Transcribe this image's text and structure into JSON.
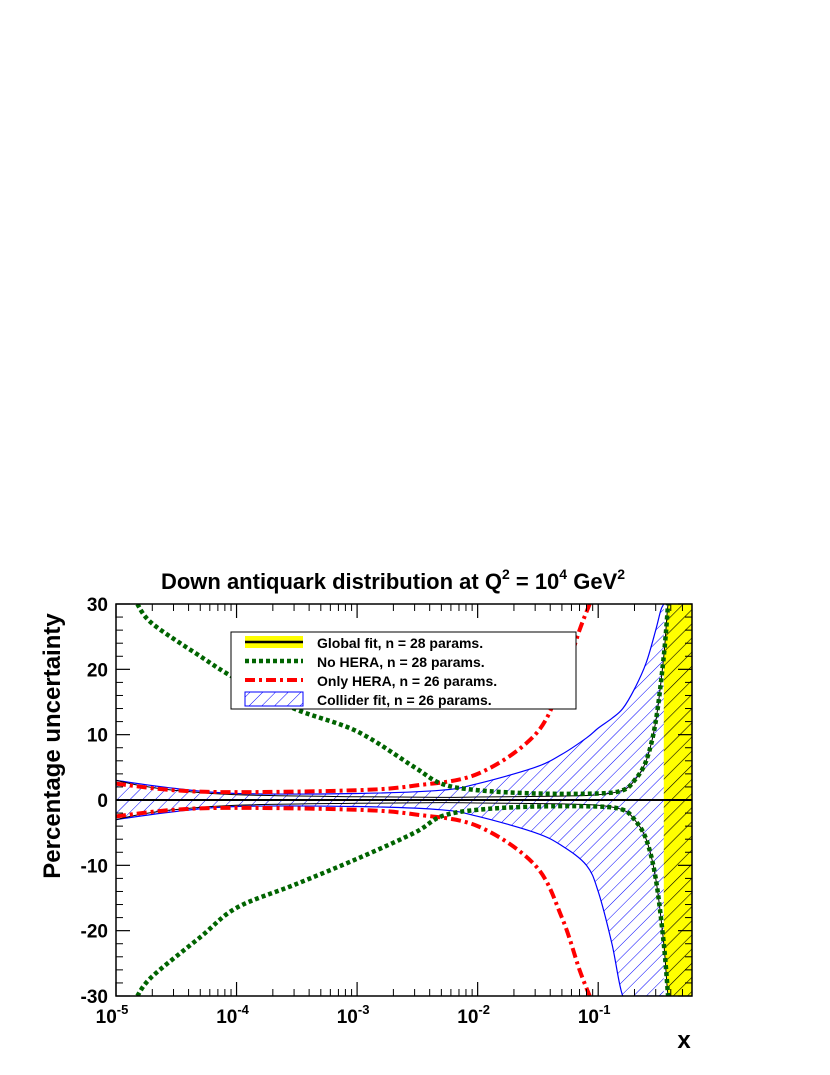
{
  "chart_data": {
    "type": "area",
    "title": {
      "main": "Down antiquark distribution at Q",
      "sup1": "2",
      "mid": " = 10",
      "sup2": "4",
      "unit": " GeV",
      "sup3": "2"
    },
    "xlabel": "x",
    "ylabel": "Percentage uncertainty",
    "x_scale": "log",
    "xlim": [
      1e-05,
      0.6
    ],
    "ylim": [
      -30,
      30
    ],
    "x_ticks": [
      {
        "value": 1e-05,
        "base": "10",
        "exp": "-5"
      },
      {
        "value": 0.0001,
        "base": "10",
        "exp": "-4"
      },
      {
        "value": 0.001,
        "base": "10",
        "exp": "-3"
      },
      {
        "value": 0.01,
        "base": "10",
        "exp": "-2"
      },
      {
        "value": 0.1,
        "base": "10",
        "exp": "-1"
      }
    ],
    "y_ticks": [
      -30,
      -20,
      -10,
      0,
      10,
      20,
      30
    ],
    "legend_position": "top-center",
    "colors": {
      "global": "#ffff00",
      "no_hera": "#006400",
      "only_hera": "#ff0000",
      "collider": "#0000ff"
    },
    "series": [
      {
        "name": "Global fit, n = 28 params.",
        "style": "band-solid-yellow-hatched",
        "x": [
          1e-05,
          1.6e-05,
          3e-05,
          0.0001,
          0.001,
          0.005,
          0.01,
          0.05,
          0.1,
          0.16,
          0.2,
          0.25,
          0.3,
          0.35,
          0.38,
          0.41,
          0.6
        ],
        "upper": [
          3.0,
          2.2,
          1.5,
          0.8,
          0.5,
          0.4,
          0.45,
          0.6,
          0.8,
          1.5,
          3,
          6,
          12,
          22,
          30,
          30,
          30
        ],
        "lower": [
          -3.0,
          -2.2,
          -1.5,
          -0.8,
          -0.5,
          -0.4,
          -0.45,
          -0.6,
          -0.8,
          -1.5,
          -3,
          -6,
          -12,
          -22,
          -30,
          -30,
          -30
        ]
      },
      {
        "name": "No HERA, n = 28 params.",
        "style": "dotted-green",
        "x": [
          1.5e-05,
          2e-05,
          5e-05,
          0.0001,
          0.0003,
          0.001,
          0.003,
          0.005,
          0.01,
          0.03,
          0.1,
          0.16,
          0.2,
          0.25,
          0.3,
          0.35,
          0.38
        ],
        "upper": [
          30,
          27,
          22,
          18.5,
          14,
          10.5,
          5,
          2.5,
          1.5,
          1,
          1,
          1.5,
          3,
          6,
          12,
          22,
          30
        ],
        "lower": [
          -30,
          -27,
          -21,
          -16.5,
          -13,
          -9,
          -5,
          -2.5,
          -1.5,
          -1,
          -1,
          -1.5,
          -3,
          -6,
          -12,
          -22,
          -30
        ]
      },
      {
        "name": "Only HERA, n = 26 params.",
        "style": "dashdot-red",
        "x": [
          1e-05,
          3e-05,
          0.0001,
          0.001,
          0.003,
          0.01,
          0.03,
          0.05,
          0.07,
          0.085
        ],
        "upper": [
          2.5,
          1.5,
          1.2,
          1.5,
          2.2,
          4,
          10,
          18,
          26,
          30
        ],
        "lower": [
          -2.5,
          -1.5,
          -1.2,
          -1.5,
          -2.2,
          -4,
          -10,
          -18,
          -26,
          -30
        ]
      },
      {
        "name": "Collider fit, n = 26 params.",
        "style": "band-blue-hatched",
        "x": [
          1e-05,
          3e-05,
          0.0001,
          0.001,
          0.005,
          0.01,
          0.03,
          0.05,
          0.08,
          0.1,
          0.13,
          0.16,
          0.2,
          0.25,
          0.3,
          0.33,
          0.35
        ],
        "upper": [
          3,
          1.8,
          1,
          1,
          1.5,
          2.5,
          5,
          7,
          9.5,
          11,
          12.5,
          14,
          17,
          21,
          26,
          29,
          30
        ],
        "lower": [
          -3,
          -1.8,
          -1,
          -1,
          -1.5,
          -2.5,
          -5,
          -7,
          -10,
          -14,
          -22,
          -30,
          -30,
          -30,
          -30,
          -30,
          -30
        ],
        "lower_cut_x": 0.145
      }
    ]
  }
}
